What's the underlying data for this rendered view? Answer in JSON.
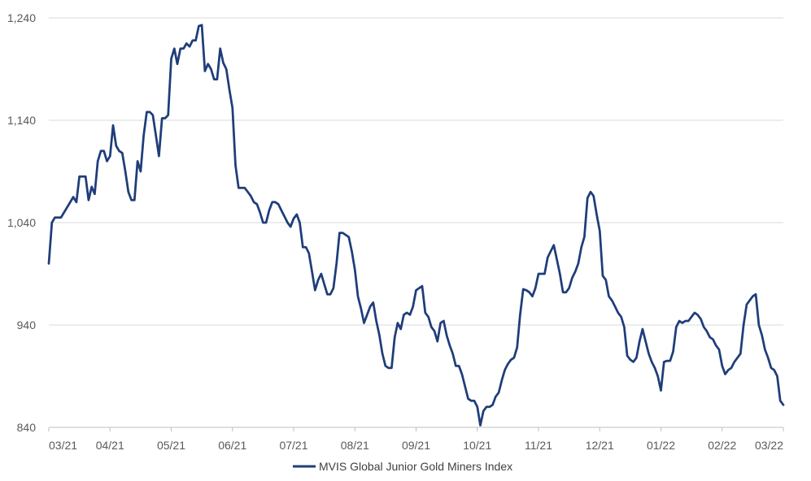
{
  "chart_data": {
    "type": "line",
    "title": "",
    "xlabel": "",
    "ylabel": "",
    "ylim": [
      840,
      1240
    ],
    "yticks": [
      840,
      940,
      1040,
      1140,
      1240
    ],
    "ytick_labels": [
      "840",
      "940",
      "1,040",
      "1,140",
      "1,240"
    ],
    "xticks": [
      "03/21",
      "04/21",
      "05/21",
      "06/21",
      "07/21",
      "08/21",
      "09/21",
      "10/21",
      "11/21",
      "12/21",
      "01/22",
      "02/22",
      "03/22"
    ],
    "grid": "horizontal",
    "legend": "bottom-center",
    "series": [
      {
        "name": "MVIS Global Junior Gold Miners Index",
        "color": "#1f3d7a",
        "x": [
          0,
          0.05,
          0.1,
          0.2,
          0.4,
          0.45,
          0.5,
          0.55,
          0.6,
          0.65,
          0.7,
          0.75,
          0.8,
          0.85,
          0.9,
          0.95,
          1.0,
          1.05,
          1.1,
          1.15,
          1.2,
          1.25,
          1.3,
          1.35,
          1.4,
          1.45,
          1.5,
          1.55,
          1.6,
          1.65,
          1.7,
          1.75,
          1.8,
          1.85,
          1.9,
          1.95,
          2.0,
          2.05,
          2.1,
          2.15,
          2.2,
          2.25,
          2.3,
          2.35,
          2.4,
          2.45,
          2.5,
          2.55,
          2.6,
          2.65,
          2.7,
          2.75,
          2.8,
          2.85,
          2.9,
          2.95,
          3.0,
          3.05,
          3.1,
          3.15,
          3.2,
          3.25,
          3.3,
          3.35,
          3.4,
          3.45,
          3.5,
          3.55,
          3.6,
          3.65,
          3.7,
          3.75,
          3.8,
          3.85,
          3.9,
          3.95,
          4.0,
          4.05,
          4.1,
          4.15,
          4.2,
          4.25,
          4.3,
          4.35,
          4.4,
          4.45,
          4.5,
          4.55,
          4.6,
          4.65,
          4.7,
          4.75,
          4.8,
          4.85,
          4.9,
          4.95,
          5.0,
          5.05,
          5.1,
          5.15,
          5.2,
          5.25,
          5.3,
          5.35,
          5.4,
          5.45,
          5.5,
          5.55,
          5.6,
          5.65,
          5.7,
          5.75,
          5.8,
          5.85,
          5.9,
          5.95,
          6.0,
          6.05,
          6.1,
          6.15,
          6.2,
          6.25,
          6.3,
          6.35,
          6.4,
          6.45,
          6.5,
          6.55,
          6.6,
          6.65,
          6.7,
          6.75,
          6.8,
          6.85,
          6.9,
          6.95,
          7.0,
          7.05,
          7.1,
          7.15,
          7.2,
          7.25,
          7.3,
          7.35,
          7.4,
          7.45,
          7.5,
          7.55,
          7.6,
          7.65,
          7.7,
          7.75,
          7.8,
          7.85,
          7.9,
          7.95,
          8.0,
          8.05,
          8.1,
          8.15,
          8.2,
          8.25,
          8.3,
          8.35,
          8.4,
          8.45,
          8.5,
          8.55,
          8.6,
          8.65,
          8.7,
          8.75,
          8.8,
          8.85,
          8.9,
          8.95,
          9.0,
          9.05,
          9.1,
          9.15,
          9.2,
          9.25,
          9.3,
          9.35,
          9.4,
          9.45,
          9.5,
          9.55,
          9.6,
          9.65,
          9.7,
          9.75,
          9.8,
          9.85,
          9.9,
          9.95,
          10.0,
          10.05,
          10.1,
          10.15,
          10.2,
          10.25,
          10.3,
          10.35,
          10.4,
          10.45,
          10.5,
          10.55,
          10.6,
          10.65,
          10.7,
          10.75,
          10.8,
          10.85,
          10.9,
          10.95,
          11.0,
          11.05,
          11.1,
          11.15,
          11.2,
          11.25,
          11.3,
          11.35,
          11.4,
          11.45,
          11.5,
          11.55,
          11.6,
          11.65,
          11.7,
          11.75,
          11.8,
          11.85,
          11.9,
          11.95,
          12.0
        ],
        "values": [
          1000,
          1040,
          1045,
          1045,
          1065,
          1060,
          1085,
          1085,
          1085,
          1062,
          1075,
          1068,
          1100,
          1110,
          1110,
          1100,
          1105,
          1135,
          1115,
          1110,
          1108,
          1090,
          1070,
          1062,
          1062,
          1100,
          1090,
          1125,
          1148,
          1148,
          1145,
          1125,
          1105,
          1142,
          1142,
          1145,
          1200,
          1210,
          1195,
          1210,
          1210,
          1215,
          1212,
          1218,
          1218,
          1232,
          1233,
          1188,
          1195,
          1190,
          1180,
          1180,
          1210,
          1196,
          1190,
          1170,
          1152,
          1096,
          1074,
          1074,
          1074,
          1070,
          1066,
          1060,
          1058,
          1050,
          1040,
          1040,
          1052,
          1060,
          1060,
          1058,
          1052,
          1046,
          1040,
          1036,
          1044,
          1048,
          1040,
          1016,
          1016,
          1010,
          992,
          974,
          984,
          990,
          980,
          970,
          970,
          976,
          1000,
          1030,
          1030,
          1028,
          1026,
          1012,
          994,
          968,
          956,
          942,
          950,
          958,
          962,
          944,
          930,
          912,
          900,
          898,
          898,
          928,
          942,
          936,
          950,
          952,
          950,
          958,
          974,
          976,
          978,
          952,
          948,
          938,
          934,
          924,
          942,
          944,
          930,
          920,
          912,
          900,
          900,
          892,
          880,
          868,
          866,
          866,
          860,
          842,
          856,
          860,
          860,
          862,
          870,
          874,
          886,
          896,
          902,
          906,
          908,
          918,
          950,
          975,
          974,
          972,
          968,
          976,
          990,
          990,
          990,
          1006,
          1012,
          1018,
          1004,
          990,
          972,
          972,
          976,
          986,
          992,
          1000,
          1016,
          1026,
          1064,
          1070,
          1066,
          1048,
          1032,
          988,
          984,
          968,
          964,
          958,
          952,
          948,
          938,
          910,
          906,
          904,
          908,
          924,
          936,
          924,
          912,
          904,
          898,
          890,
          876,
          904,
          905,
          905,
          914,
          938,
          944,
          942,
          944,
          944,
          948,
          952,
          950,
          946,
          938,
          934,
          928,
          926,
          920,
          916,
          900,
          892,
          896,
          898,
          904,
          908,
          912,
          940,
          960,
          964,
          968,
          970,
          940,
          930,
          916,
          908,
          898,
          896,
          890,
          866,
          862
        ]
      }
    ]
  }
}
